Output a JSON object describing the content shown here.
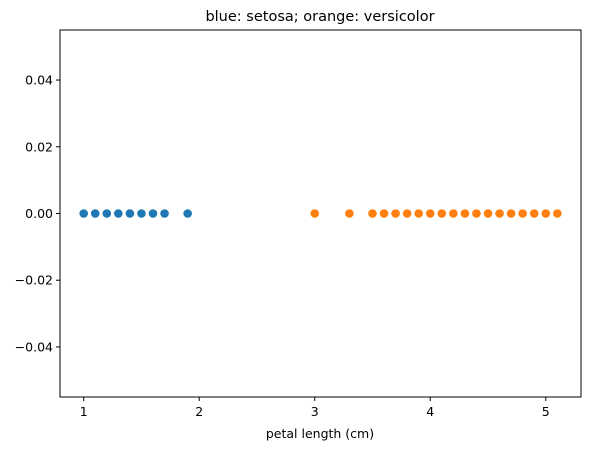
{
  "chart_data": {
    "type": "scatter",
    "title": "blue: setosa; orange: versicolor",
    "xlabel": "petal length (cm)",
    "ylabel": "",
    "xlim": [
      0.795,
      5.305
    ],
    "ylim": [
      -0.055,
      0.055
    ],
    "x_ticks": [
      1,
      2,
      3,
      4,
      5
    ],
    "x_tick_labels": [
      "1",
      "2",
      "3",
      "4",
      "5"
    ],
    "y_ticks": [
      0.04,
      0.02,
      0.0,
      -0.02,
      -0.04
    ],
    "y_tick_labels": [
      "0.04",
      "0.02",
      "0.00",
      "−0.02",
      "−0.04"
    ],
    "grid": false,
    "series": [
      {
        "name": "setosa",
        "color": "#1f77b4",
        "x": [
          1.0,
          1.1,
          1.2,
          1.3,
          1.4,
          1.5,
          1.6,
          1.7,
          1.9
        ],
        "y": [
          0,
          0,
          0,
          0,
          0,
          0,
          0,
          0,
          0
        ]
      },
      {
        "name": "versicolor",
        "color": "#ff7f0e",
        "x": [
          3.0,
          3.3,
          3.5,
          3.6,
          3.7,
          3.8,
          3.9,
          4.0,
          4.1,
          4.2,
          4.3,
          4.4,
          4.5,
          4.6,
          4.7,
          4.8,
          4.9,
          5.0,
          5.1
        ],
        "y": [
          0,
          0,
          0,
          0,
          0,
          0,
          0,
          0,
          0,
          0,
          0,
          0,
          0,
          0,
          0,
          0,
          0,
          0,
          0
        ]
      }
    ]
  }
}
